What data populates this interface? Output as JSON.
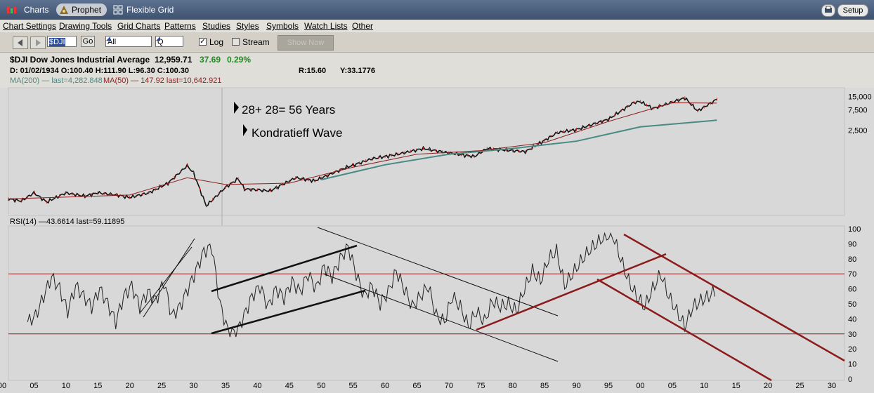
{
  "app": {
    "tabs": [
      {
        "label": "Charts",
        "icon": "charts-icon"
      },
      {
        "label": "Prophet",
        "icon": "prophet-logo-icon",
        "active": true
      },
      {
        "label": "Flexible Grid",
        "icon": "grid-icon"
      }
    ],
    "setup_label": "Setup",
    "print_icon": "print-icon"
  },
  "menu": [
    "Chart Settings",
    "Drawing Tools",
    "Grid Charts",
    "Patterns",
    "Studies",
    "Styles",
    "Symbols",
    "Watch Lists",
    "Other"
  ],
  "toolbar": {
    "symbol_value": "$DJI",
    "go_label": "Go",
    "range_value": "All",
    "period_value": "Q",
    "log_label": "Log",
    "log_checked": true,
    "stream_label": "Stream",
    "stream_checked": false,
    "disabled_button_label": "Show Now"
  },
  "quote": {
    "title": "$DJI Dow Jones Industrial Average",
    "last": "12,959.71",
    "change": "37.69",
    "change_pct": "0.29%",
    "ohlc": "D: 01/02/1934 O:100.40 H:111.90 L:96.30 C:100.30",
    "r_value": "R:15.60",
    "y_value": "Y:33.1776",
    "ma200_label": "MA(200)",
    "ma200_last": "last=4,282.848",
    "ma50_label": "MA(50)",
    "ma50_values": "147.92 last=10,642.921",
    "up_color": "#1f8a1f",
    "ma200_color": "#4a8a84",
    "ma50_color": "#8b1e1e"
  },
  "chart_data": [
    {
      "type": "line",
      "title": "$DJI Dow Jones Industrial Average",
      "scale": "log",
      "x": [
        1901,
        1903,
        1905,
        1907,
        1910,
        1913,
        1915,
        1918,
        1920,
        1923,
        1926,
        1929,
        1930,
        1932,
        1935,
        1937,
        1938,
        1942,
        1946,
        1949,
        1954,
        1958,
        1962,
        1966,
        1970,
        1974,
        1976,
        1980,
        1982,
        1987,
        1990,
        1995,
        1999,
        2000,
        2002,
        2007,
        2009,
        2012
      ],
      "y": [
        65,
        58,
        90,
        55,
        90,
        75,
        90,
        80,
        70,
        90,
        150,
        380,
        260,
        45,
        120,
        190,
        110,
        100,
        200,
        170,
        350,
        550,
        700,
        950,
        750,
        620,
        950,
        850,
        800,
        2200,
        2600,
        4500,
        11000,
        11500,
        8000,
        14000,
        7000,
        13000
      ],
      "ytick_labels": [
        "15,000",
        "7,500",
        "2,500"
      ],
      "annotations": [
        "28+ 28= 56 Years",
        "Kondratieff Wave"
      ],
      "series": [
        {
          "name": "MA(200)",
          "x": [
            1950,
            1960,
            1970,
            1980,
            1990,
            2000,
            2012
          ],
          "y": [
            180,
            400,
            700,
            950,
            1400,
            3000,
            4283
          ]
        },
        {
          "name": "MA(50)",
          "x": [
            1901,
            1920,
            1929,
            1935,
            1945,
            1955,
            1965,
            1975,
            1985,
            1995,
            2005,
            2012
          ],
          "y": [
            65,
            80,
            200,
            140,
            150,
            350,
            700,
            850,
            1300,
            4000,
            10800,
            10643
          ]
        }
      ]
    },
    {
      "type": "line",
      "title": "RSI(14)",
      "legend_text": "RSI(14) —43.6614 last=59.11895",
      "ylim": [
        0,
        100
      ],
      "ytick_labels": [
        "100",
        "90",
        "80",
        "70",
        "60",
        "50",
        "40",
        "30",
        "20",
        "10",
        "0"
      ],
      "xtick_labels": [
        "00",
        "05",
        "10",
        "15",
        "20",
        "25",
        "30",
        "35",
        "40",
        "45",
        "50",
        "55",
        "60",
        "65",
        "70",
        "75",
        "80",
        "85",
        "90",
        "95",
        "00",
        "05",
        "10",
        "15",
        "20",
        "25",
        "30"
      ],
      "reference_lines": [
        70,
        30
      ],
      "y": [
        38,
        42,
        55,
        68,
        60,
        45,
        62,
        55,
        48,
        60,
        50,
        38,
        55,
        62,
        48,
        58,
        52,
        65,
        42,
        48,
        60,
        72,
        85,
        88,
        50,
        32,
        30,
        42,
        55,
        62,
        48,
        60,
        54,
        65,
        58,
        70,
        60,
        75,
        68,
        80,
        88,
        70,
        55,
        62,
        50,
        58,
        72,
        60,
        48,
        55,
        62,
        42,
        38,
        55,
        48,
        35,
        45,
        38,
        52,
        48,
        50,
        45,
        60,
        72,
        65,
        80,
        85,
        62,
        70,
        78,
        85,
        90,
        95,
        96,
        80,
        65,
        55,
        48,
        60,
        70,
        55,
        45,
        35,
        48,
        52,
        55,
        60
      ]
    }
  ]
}
